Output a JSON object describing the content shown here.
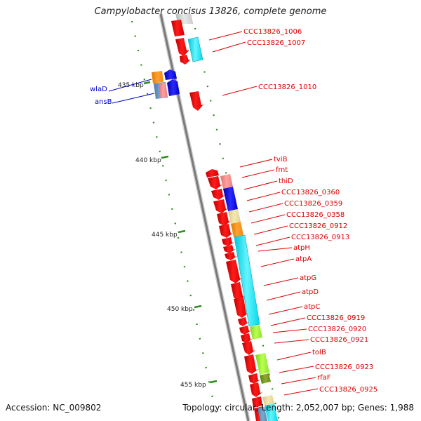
{
  "title": "Campylobacter concisus 13826, complete genome",
  "footer": {
    "accession": "Accession: NC_009802",
    "stats": "Topology: circular; Length: 2,052,007 bp; Genes: 1,988"
  },
  "colors": {
    "forward_cds": "#ff0000",
    "label_right": "#dd0000",
    "label_left": "#0000cc",
    "backbone": "#8c8c8c",
    "tick": "#2e8b1e"
  },
  "ticks": [
    "435 kbp",
    "440 kbp",
    "445 kbp",
    "450 kbp",
    "455 kbp"
  ],
  "labels_right": [
    "CCC13826_1006",
    "CCC13826_1007",
    "CCC13826_1010",
    "tviB",
    "fmt",
    "thiD",
    "CCC13826_0360",
    "CCC13826_0359",
    "CCC13826_0358",
    "CCC13826_0912",
    "CCC13826_0913",
    "atpH",
    "atpA",
    "atpG",
    "atpD",
    "atpC",
    "CCC13826_0919",
    "CCC13826_0920",
    "CCC13826_0921",
    "tolB",
    "CCC13826_0923",
    "rfaF",
    "CCC13826_0925"
  ],
  "labels_left": [
    "wlaD",
    "ansB"
  ]
}
